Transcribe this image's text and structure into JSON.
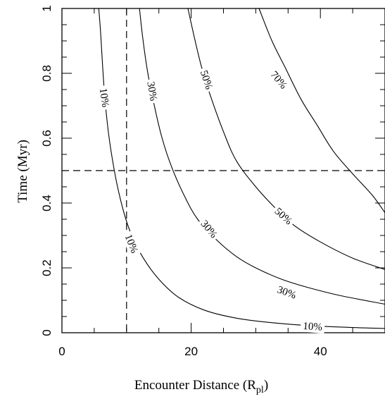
{
  "chart_data": {
    "type": "contour",
    "xlabel": "Encounter Distance (R",
    "xlabel_sub": "pl",
    "xlabel_close": ")",
    "ylabel": "Time (Myr)",
    "xlim": [
      0,
      50
    ],
    "ylim": [
      0,
      1
    ],
    "x_ticks": [
      {
        "value": 0,
        "label": "0"
      },
      {
        "value": 20,
        "label": "20"
      },
      {
        "value": 40,
        "label": "40"
      }
    ],
    "y_ticks": [
      {
        "value": 0,
        "label": "0"
      },
      {
        "value": 0.2,
        "label": "0.2"
      },
      {
        "value": 0.4,
        "label": "0.4"
      },
      {
        "value": 0.6,
        "label": "0.6"
      },
      {
        "value": 0.8,
        "label": "0.8"
      },
      {
        "value": 1,
        "label": "1"
      }
    ],
    "reference_lines": {
      "vertical_x": 10,
      "horizontal_y": 0.5
    },
    "contours": [
      {
        "level": "10%",
        "points": [
          [
            5.7,
            1.0
          ],
          [
            6.0,
            0.92
          ],
          [
            6.5,
            0.76
          ],
          [
            7.0,
            0.65
          ],
          [
            7.6,
            0.56
          ],
          [
            8.5,
            0.46
          ],
          [
            9.6,
            0.37
          ],
          [
            10.8,
            0.3
          ],
          [
            12.6,
            0.23
          ],
          [
            15.0,
            0.165
          ],
          [
            18.0,
            0.11
          ],
          [
            22.0,
            0.07
          ],
          [
            27.0,
            0.045
          ],
          [
            33.0,
            0.03
          ],
          [
            40.0,
            0.02
          ],
          [
            50.0,
            0.013
          ]
        ]
      },
      {
        "level": "30%",
        "points": [
          [
            12.0,
            1.0
          ],
          [
            12.5,
            0.91
          ],
          [
            13.3,
            0.8
          ],
          [
            14.3,
            0.7
          ],
          [
            15.5,
            0.6
          ],
          [
            17.0,
            0.51
          ],
          [
            19.0,
            0.42
          ],
          [
            21.0,
            0.35
          ],
          [
            24.0,
            0.285
          ],
          [
            27.0,
            0.235
          ],
          [
            30.0,
            0.2
          ],
          [
            34.0,
            0.165
          ],
          [
            38.0,
            0.14
          ],
          [
            43.0,
            0.115
          ],
          [
            50.0,
            0.088
          ]
        ]
      },
      {
        "level": "50%",
        "points": [
          [
            19.5,
            1.0
          ],
          [
            20.5,
            0.91
          ],
          [
            21.6,
            0.82
          ],
          [
            23.0,
            0.73
          ],
          [
            25.0,
            0.62
          ],
          [
            27.0,
            0.53
          ],
          [
            30.0,
            0.45
          ],
          [
            33.0,
            0.385
          ],
          [
            36.0,
            0.33
          ],
          [
            40.0,
            0.28
          ],
          [
            45.0,
            0.23
          ],
          [
            50.0,
            0.195
          ]
        ]
      },
      {
        "level": "70%",
        "points": [
          [
            30.5,
            1.0
          ],
          [
            32.5,
            0.9
          ],
          [
            34.5,
            0.82
          ],
          [
            37.0,
            0.72
          ],
          [
            39.5,
            0.64
          ],
          [
            42.0,
            0.56
          ],
          [
            45.0,
            0.49
          ],
          [
            48.0,
            0.425
          ],
          [
            50.0,
            0.37
          ]
        ]
      }
    ],
    "labels": [
      {
        "text": "10%",
        "x": 6.6,
        "y": 0.725,
        "angle": 82
      },
      {
        "text": "10%",
        "x": 10.8,
        "y": 0.275,
        "angle": 68
      },
      {
        "text": "10%",
        "x": 38.8,
        "y": 0.02,
        "angle": 4
      },
      {
        "text": "30%",
        "x": 14.0,
        "y": 0.745,
        "angle": 80
      },
      {
        "text": "30%",
        "x": 22.8,
        "y": 0.32,
        "angle": 50
      },
      {
        "text": "30%",
        "x": 34.8,
        "y": 0.125,
        "angle": 20
      },
      {
        "text": "50%",
        "x": 22.4,
        "y": 0.78,
        "angle": 72
      },
      {
        "text": "50%",
        "x": 34.3,
        "y": 0.36,
        "angle": 42
      },
      {
        "text": "70%",
        "x": 33.6,
        "y": 0.78,
        "angle": 50
      }
    ]
  }
}
